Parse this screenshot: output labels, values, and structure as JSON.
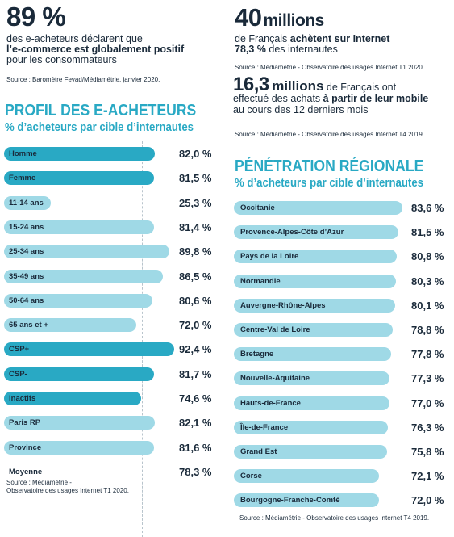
{
  "stat_1": {
    "big": "89 %",
    "line1": "des e-acheteurs déclarent que",
    "line2_bold": "l’e-commerce est globalement positif",
    "line3": "pour les consommateurs",
    "source": "Source : Baromètre Fevad/Médiamétrie, janvier 2020."
  },
  "stat_2": {
    "big": "40",
    "unit": "millions",
    "line1_plain": "de Français ",
    "line1_bold": "achètent sur Internet",
    "line2_bold": "78,3 %",
    "line2_plain": " des internautes",
    "source": "Source : Médiamétrie - Observatoire des usages Internet T1 2020."
  },
  "stat_3": {
    "big": "16,3",
    "unit": "millions",
    "line1_plain": " de Français ont",
    "line2_plain": "effectué des achats ",
    "line2_bold": "à partir de leur mobile",
    "line3": "au cours des 12 derniers mois",
    "source": "Source : Médiamétrie - Observatoire des usages Internet T4 2019."
  },
  "colors": {
    "accent": "#29a9c4",
    "light": "#9fd9e6",
    "text": "#1a2a3a"
  },
  "chart_data": [
    {
      "type": "bar",
      "title": "PROFIL DES E-ACHETEURS",
      "subtitle": "% d’acheteurs par cible d’internautes",
      "categories": [
        "Homme",
        "Femme",
        "11-14 ans",
        "15-24 ans",
        "25-34 ans",
        "35-49 ans",
        "50-64 ans",
        "65 ans et +",
        "CSP+",
        "CSP-",
        "Inactifs",
        "Paris RP",
        "Province",
        "Moyenne"
      ],
      "values": [
        82.0,
        81.5,
        25.3,
        81.4,
        89.8,
        86.5,
        80.6,
        72.0,
        92.4,
        81.7,
        74.6,
        82.1,
        81.6,
        78.3
      ],
      "value_labels": [
        "82,0 %",
        "81,5 %",
        "25,3 %",
        "81,4 %",
        "89,8 %",
        "86,5 %",
        "80,6 %",
        "72,0 %",
        "92,4 %",
        "81,7 %",
        "74,6 %",
        "82,1 %",
        "81,6 %",
        "78,3 %"
      ],
      "bar_colors": [
        "#29a9c4",
        "#29a9c4",
        "#9fd9e6",
        "#9fd9e6",
        "#9fd9e6",
        "#9fd9e6",
        "#9fd9e6",
        "#9fd9e6",
        "#29a9c4",
        "#29a9c4",
        "#29a9c4",
        "#9fd9e6",
        "#9fd9e6",
        "none"
      ],
      "xlim": [
        0,
        100
      ],
      "source": "Source : Médiamétrie -\nObservatoire des usages Internet T1 2020."
    },
    {
      "type": "bar",
      "title": "PÉNÉTRATION RÉGIONALE",
      "subtitle": "% d’acheteurs par cible d’internautes",
      "categories": [
        "Occitanie",
        "Provence-Alpes-Côte d’Azur",
        "Pays de la Loire",
        "Normandie",
        "Auvergne-Rhône-Alpes",
        "Centre-Val de Loire",
        "Bretagne",
        "Nouvelle-Aquitaine",
        "Hauts-de-France",
        "Île-de-France",
        "Grand Est",
        "Corse",
        "Bourgogne-Franche-Comté"
      ],
      "values": [
        83.6,
        81.5,
        80.8,
        80.3,
        80.1,
        78.8,
        77.8,
        77.3,
        77.0,
        76.3,
        75.8,
        72.1,
        72.0
      ],
      "value_labels": [
        "83,6 %",
        "81,5 %",
        "80,8 %",
        "80,3 %",
        "80,1 %",
        "78,8 %",
        "77,8 %",
        "77,3 %",
        "77,0 %",
        "76,3 %",
        "75,8 %",
        "72,1 %",
        "72,0 %"
      ],
      "bar_color": "#9fd9e6",
      "xlim": [
        0,
        100
      ],
      "source": "Source : Médiamétrie - Observatoire des usages Internet T4 2019."
    }
  ]
}
